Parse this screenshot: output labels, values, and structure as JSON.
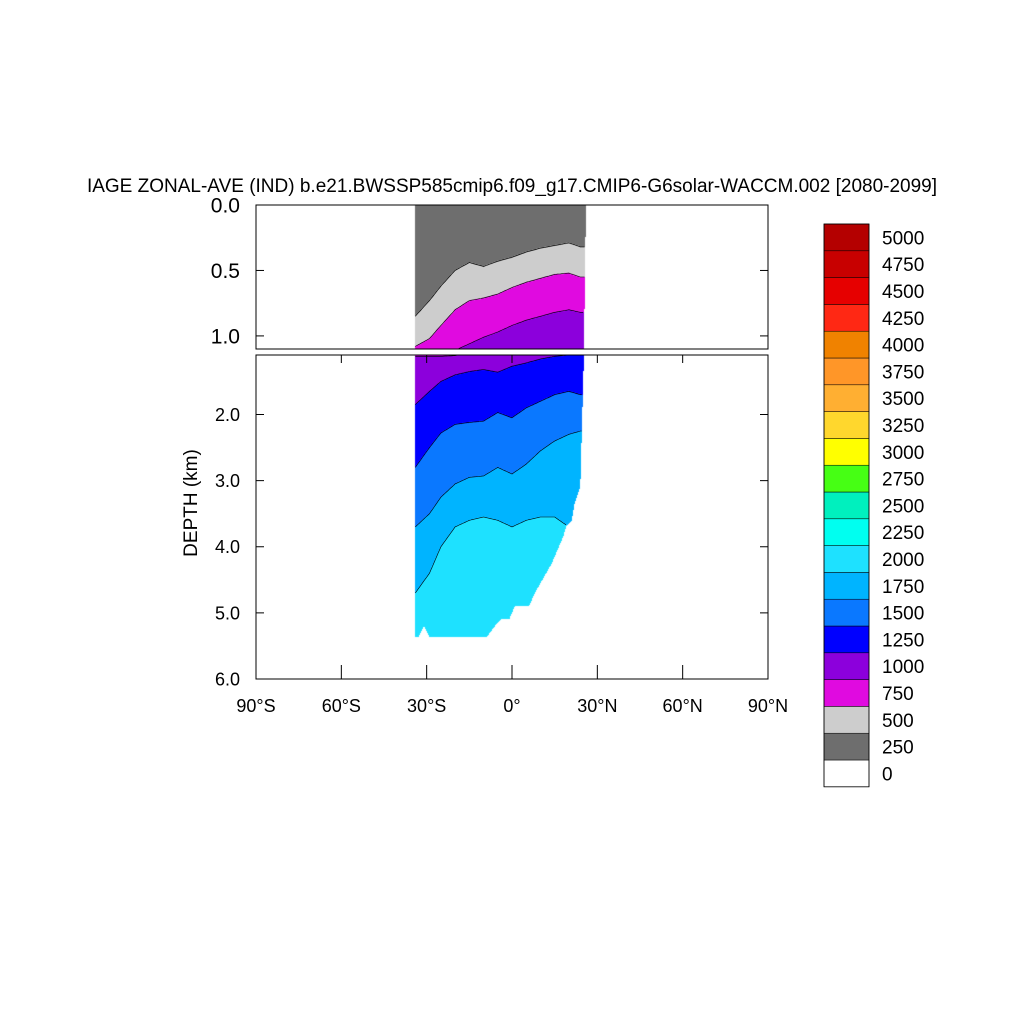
{
  "chart_data": {
    "type": "heatmap",
    "subtype": "filled-contour depth-latitude section",
    "title": "IAGE ZONAL-AVE (IND) b.e21.BWSSP585cmip6.f09_g17.CMIP6-G6solar-WACCM.002 [2080-2099]",
    "ylabel": "DEPTH (km)",
    "xlabel": "",
    "xlim": [
      -90,
      90
    ],
    "ylim_top_panel": [
      0.0,
      1.1
    ],
    "ylim_bottom_panel": [
      1.1,
      6.0
    ],
    "x_ticks": [
      {
        "value": -90,
        "label": "90°S"
      },
      {
        "value": -60,
        "label": "60°S"
      },
      {
        "value": -30,
        "label": "30°S"
      },
      {
        "value": 0,
        "label": "0°"
      },
      {
        "value": 30,
        "label": "30°N"
      },
      {
        "value": 60,
        "label": "60°N"
      },
      {
        "value": 90,
        "label": "90°N"
      }
    ],
    "top_y_ticks": [
      {
        "value": 0.0,
        "label": "0.0"
      },
      {
        "value": 0.5,
        "label": "0.5"
      },
      {
        "value": 1.0,
        "label": "1.0"
      }
    ],
    "bottom_y_ticks": [
      {
        "value": 2.0,
        "label": "2.0"
      },
      {
        "value": 3.0,
        "label": "3.0"
      },
      {
        "value": 4.0,
        "label": "4.0"
      },
      {
        "value": 5.0,
        "label": "5.0"
      },
      {
        "value": 6.0,
        "label": "6.0"
      }
    ],
    "colorbar": {
      "levels": [
        "0",
        "250",
        "500",
        "750",
        "1000",
        "1250",
        "1500",
        "1750",
        "2000",
        "2250",
        "2500",
        "2750",
        "3000",
        "3250",
        "3500",
        "3750",
        "4000",
        "4250",
        "4500",
        "4750",
        "5000"
      ],
      "colors": [
        "#FFFFFF",
        "#6E6E6E",
        "#CDCDCD",
        "#E00AE0",
        "#8C00DC",
        "#0000FF",
        "#0A78FF",
        "#00B4FF",
        "#1EE1FF",
        "#00FFF0",
        "#00F0BE",
        "#46FF14",
        "#FFFF00",
        "#FFD72D",
        "#FFAF32",
        "#FF9628",
        "#F08200",
        "#FF2814",
        "#E60000",
        "#C80000",
        "#B40000"
      ]
    },
    "domain_lat": [
      -34,
      26
    ],
    "fill_rgb": {
      "0": [
        255,
        255,
        255
      ],
      "250": [
        110,
        110,
        110
      ],
      "500": [
        205,
        205,
        205
      ],
      "750": [
        224,
        10,
        224
      ],
      "1000": [
        140,
        0,
        220
      ],
      "1250": [
        0,
        0,
        255
      ],
      "1500": [
        10,
        120,
        255
      ],
      "1750": [
        0,
        180,
        255
      ],
      "2000": [
        30,
        225,
        255
      ]
    },
    "contour_boundaries": [
      {
        "level": 250,
        "lat": [
          -34,
          -29,
          -25,
          -20,
          -15,
          -10,
          -5,
          0,
          5,
          10,
          15,
          20,
          24
        ],
        "depth": [
          0.85,
          0.73,
          0.62,
          0.5,
          0.44,
          0.47,
          0.43,
          0.4,
          0.36,
          0.33,
          0.31,
          0.29,
          0.32
        ]
      },
      {
        "level": 500,
        "lat": [
          -34,
          -29,
          -25,
          -20,
          -15,
          -10,
          -5,
          0,
          5,
          10,
          15,
          20,
          24
        ],
        "depth": [
          1.08,
          1.02,
          0.92,
          0.8,
          0.73,
          0.71,
          0.68,
          0.63,
          0.59,
          0.56,
          0.53,
          0.52,
          0.55
        ]
      },
      {
        "level": 750,
        "lat": [
          -34,
          -29,
          -25,
          -20,
          -15,
          -10,
          -5,
          0,
          5,
          10,
          15,
          20,
          24
        ],
        "depth": [
          1.12,
          1.12,
          1.12,
          1.11,
          1.06,
          1.01,
          0.97,
          0.92,
          0.88,
          0.85,
          0.82,
          0.8,
          0.82
        ]
      },
      {
        "level": 1000,
        "lat": [
          -34,
          -29,
          -25,
          -20,
          -15,
          -10,
          -5,
          0,
          5,
          10,
          15,
          20,
          24
        ],
        "depth": [
          1.85,
          1.65,
          1.5,
          1.4,
          1.35,
          1.32,
          1.36,
          1.27,
          1.22,
          1.16,
          1.12,
          1.1,
          1.1
        ]
      },
      {
        "level": 1250,
        "lat": [
          -34,
          -29,
          -25,
          -20,
          -15,
          -10,
          -5,
          0,
          5,
          10,
          15,
          20,
          24
        ],
        "depth": [
          2.8,
          2.5,
          2.28,
          2.15,
          2.12,
          2.1,
          1.97,
          2.05,
          1.9,
          1.8,
          1.7,
          1.65,
          1.7
        ]
      },
      {
        "level": 1500,
        "lat": [
          -34,
          -29,
          -25,
          -20,
          -15,
          -10,
          -5,
          0,
          5,
          10,
          15,
          20,
          24
        ],
        "depth": [
          3.7,
          3.5,
          3.25,
          3.05,
          2.95,
          2.93,
          2.8,
          2.9,
          2.75,
          2.55,
          2.4,
          2.3,
          2.25
        ]
      },
      {
        "level": 1750,
        "lat": [
          -34,
          -29,
          -25,
          -20,
          -15,
          -10,
          -5,
          0,
          5,
          10,
          15,
          20,
          24
        ],
        "depth": [
          4.7,
          4.4,
          4.0,
          3.7,
          3.6,
          3.55,
          3.6,
          3.7,
          3.6,
          3.55,
          3.55,
          3.7,
          3.9
        ]
      }
    ],
    "bottom_by_lat": {
      "lat": [
        -34,
        -33,
        -31,
        -29,
        -27,
        -24,
        -20,
        -14,
        -9,
        -6,
        -4,
        -1,
        1,
        3,
        6,
        8,
        10,
        12,
        14,
        16,
        18,
        19,
        21,
        22,
        24,
        26
      ],
      "depth": [
        5.37,
        5.37,
        5.2,
        5.37,
        5.37,
        5.37,
        5.37,
        5.37,
        5.37,
        5.2,
        5.1,
        5.1,
        4.9,
        4.9,
        4.9,
        4.7,
        4.55,
        4.4,
        4.25,
        4.05,
        3.85,
        3.7,
        3.6,
        3.35,
        3.1,
        0.0
      ]
    }
  }
}
